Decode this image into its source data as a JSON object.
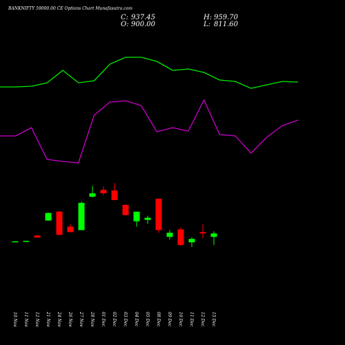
{
  "header": {
    "title": "BANKNIFTY 59000.00 CE Options Chart Munafasutra.com",
    "readout": [
      {
        "label": "C:",
        "text": "937.45"
      },
      {
        "label": "O:",
        "text": "900.00"
      },
      {
        "label": "H:",
        "text": "959.70"
      },
      {
        "label": "L:",
        "text": "811.60"
      }
    ]
  },
  "chart_data": [
    {
      "type": "candlestick",
      "categories": [
        "10 Nov",
        "11 Nov",
        "12 Nov",
        "21 Nov",
        "24 Nov",
        "26 Nov",
        "27 Nov",
        "28 Nov",
        "01 Dec",
        "02 Dec",
        "03 Dec",
        "04 Dec",
        "05 Dec",
        "08 Dec",
        "09 Dec",
        "10 Dec",
        "11 Dec",
        "12 Dec",
        "15 Dec"
      ],
      "open": [
        850,
        855,
        915,
        1078,
        1175,
        1011,
        974,
        1337,
        1411,
        1404,
        1248,
        1070,
        1085,
        1315,
        900,
        982,
        841,
        952,
        900
      ],
      "close": [
        852,
        857,
        893,
        1160,
        922,
        952,
        1270,
        1374,
        1374,
        1300,
        1137,
        1174,
        1108,
        974,
        945,
        812,
        878,
        937,
        937.45
      ],
      "high": [
        855,
        860,
        920,
        1165,
        1180,
        1040,
        1285,
        1455,
        1448,
        1485,
        1255,
        1175,
        1130,
        1315,
        975,
        1003,
        895,
        1040,
        959.7
      ],
      "low": [
        848,
        852,
        890,
        1075,
        920,
        950,
        974,
        1330,
        1352,
        1300,
        1130,
        1010,
        1040,
        945,
        870,
        805,
        790,
        885,
        811.6
      ],
      "up_color": "#00ff00",
      "down_color": "#ff0000",
      "flat_color": "#cccccc",
      "ylim": [
        700,
        1600
      ]
    },
    {
      "type": "line",
      "x": [
        0,
        1,
        2,
        3,
        4,
        5,
        6,
        7,
        8,
        9,
        10,
        11,
        12,
        13,
        14,
        15,
        16,
        17,
        18,
        19
      ],
      "xlim": [
        0,
        19
      ],
      "ylim": [
        0,
        180
      ],
      "series": [
        {
          "color": "#00ee00",
          "values": [
            124,
            124,
            125,
            130,
            148,
            130,
            133,
            157,
            167,
            167,
            161,
            148,
            150,
            145,
            134,
            132,
            122,
            127,
            132,
            131
          ]
        },
        {
          "color": "#cc00cc",
          "values": [
            53,
            53,
            65,
            19,
            16,
            14,
            83,
            102,
            104,
            97,
            59,
            65,
            60,
            105,
            55,
            53,
            28,
            51,
            68,
            76
          ]
        }
      ]
    }
  ]
}
